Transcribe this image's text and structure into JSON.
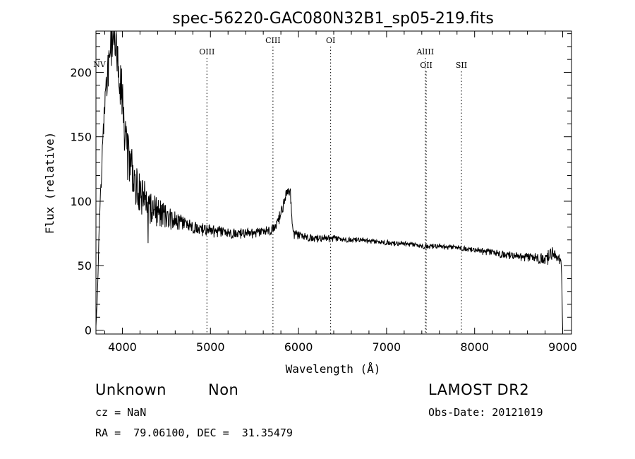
{
  "chart_data": {
    "type": "line",
    "title": "spec-56220-GAC080N32B1_sp05-219.fits",
    "xlabel": "Wavelength (Å)",
    "ylabel": "Flux (relative)",
    "xlim": [
      3700,
      9100
    ],
    "ylim": [
      -3,
      232
    ],
    "xticks": [
      4000,
      5000,
      6000,
      7000,
      8000,
      9000
    ],
    "yticks": [
      0,
      50,
      100,
      150,
      200
    ],
    "grid": false,
    "legend": "none",
    "line_color": "#000000",
    "spectrum_anchors": {
      "x": [
        3700,
        3715,
        3740,
        3780,
        3830,
        3870,
        3900,
        3930,
        3960,
        3990,
        4020,
        4060,
        4100,
        4150,
        4200,
        4300,
        4400,
        4500,
        4600,
        4700,
        4800,
        4900,
        5000,
        5100,
        5200,
        5300,
        5400,
        5500,
        5600,
        5700,
        5750,
        5800,
        5850,
        5880,
        5910,
        5930,
        5950,
        6000,
        6100,
        6200,
        6300,
        6400,
        6500,
        6600,
        6700,
        6800,
        6900,
        7000,
        7100,
        7200,
        7300,
        7400,
        7500,
        7600,
        7700,
        7800,
        7900,
        8000,
        8100,
        8200,
        8300,
        8400,
        8500,
        8600,
        8700,
        8800,
        8850,
        8880,
        8900,
        8930,
        8960,
        8980,
        8990,
        8995,
        9000
      ],
      "y": [
        3,
        25,
        85,
        150,
        200,
        220,
        230,
        225,
        200,
        185,
        160,
        135,
        125,
        112,
        105,
        97,
        92,
        88,
        85,
        82,
        80,
        78,
        77,
        76,
        75,
        75,
        75,
        75,
        76,
        78,
        82,
        90,
        102,
        108,
        105,
        80,
        74,
        73,
        72,
        71,
        71,
        71,
        70,
        70,
        70,
        69,
        68,
        68,
        67,
        67,
        66,
        65,
        65,
        65,
        64,
        64,
        63,
        62,
        61,
        60,
        59,
        58,
        57,
        56,
        56,
        55,
        57,
        60,
        58,
        56,
        55,
        54,
        40,
        15,
        0
      ],
      "noise_amplitude": [
        0,
        2,
        5,
        10,
        15,
        18,
        20,
        20,
        20,
        20,
        20,
        20,
        18,
        18,
        16,
        14,
        12,
        9,
        8,
        6,
        5,
        5,
        5,
        5,
        4,
        4,
        4,
        4,
        4,
        4,
        4,
        5,
        5,
        5,
        5,
        4,
        4,
        4,
        3,
        3,
        3,
        3,
        2,
        2,
        2,
        2,
        2,
        2,
        2,
        2,
        2,
        2,
        2,
        2,
        2,
        2,
        2,
        2,
        3,
        3,
        3,
        3,
        3,
        4,
        4,
        5,
        6,
        6,
        5,
        4,
        4,
        3,
        2,
        1,
        0
      ]
    },
    "annotations": [
      {
        "label": "NV",
        "x": 3740,
        "row": 4
      },
      {
        "label": "OIII",
        "x": 4960,
        "row": 2
      },
      {
        "label": "CIII",
        "x": 5710,
        "row": 1
      },
      {
        "label": "OI",
        "x": 6365,
        "row": 1
      },
      {
        "label": "AlIII",
        "x": 7440,
        "row": 2
      },
      {
        "label": "OII",
        "x": 7450,
        "row": 3
      },
      {
        "label": "SII",
        "x": 7850,
        "row": 3
      }
    ]
  },
  "info": {
    "object_class": "Unknown",
    "subclass": "Non",
    "cz": "cz = NaN",
    "coords": "RA =  79.06100, DEC =  31.35479",
    "survey": "LAMOST DR2",
    "obs_date": "Obs-Date: 20121019"
  }
}
